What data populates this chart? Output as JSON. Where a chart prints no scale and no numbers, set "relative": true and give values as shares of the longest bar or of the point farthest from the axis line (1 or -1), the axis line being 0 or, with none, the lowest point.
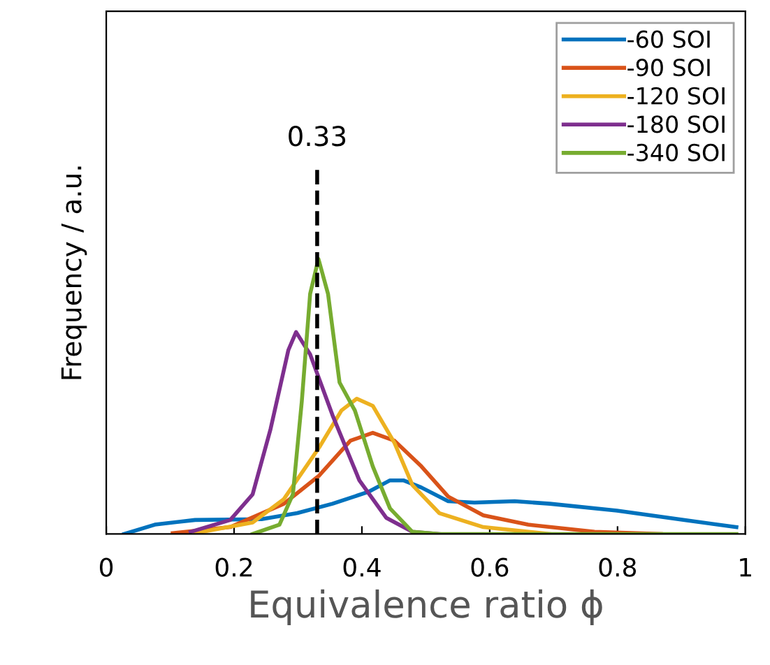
{
  "chart_data": {
    "type": "line",
    "xlabel": "Equivalence ratio ϕ",
    "ylabel": "Frequency / a.u.",
    "relative": true,
    "xlim": [
      0,
      1
    ],
    "xticks": [
      0,
      0.2,
      0.4,
      0.6,
      0.8,
      1
    ],
    "grid": false,
    "legend": "top right",
    "marker": "none",
    "line_style": "solid",
    "ref_lines": [
      {
        "axis": "x",
        "value": 0.33,
        "label": "0.33",
        "color": "#000000",
        "line_style": "dashed"
      }
    ],
    "series": [
      {
        "name": "-60 SOI",
        "color": "#0072bd",
        "x": [
          0.028,
          0.076,
          0.139,
          0.243,
          0.299,
          0.354,
          0.41,
          0.444,
          0.465,
          0.493,
          0.535,
          0.576,
          0.639,
          0.694,
          0.799,
          0.903,
          0.986
        ],
        "values": [
          0,
          0.034,
          0.051,
          0.054,
          0.076,
          0.11,
          0.153,
          0.195,
          0.195,
          0.169,
          0.119,
          0.114,
          0.119,
          0.11,
          0.085,
          0.051,
          0.025
        ]
      },
      {
        "name": "-90 SOI",
        "color": "#d95319",
        "x": [
          0.104,
          0.194,
          0.278,
          0.333,
          0.382,
          0.417,
          0.451,
          0.493,
          0.535,
          0.59,
          0.66,
          0.764,
          0.868
        ],
        "values": [
          0.003,
          0.025,
          0.11,
          0.212,
          0.339,
          0.368,
          0.339,
          0.246,
          0.136,
          0.068,
          0.034,
          0.008,
          0
        ]
      },
      {
        "name": "-120 SOI",
        "color": "#edb120",
        "x": [
          0.139,
          0.229,
          0.278,
          0.333,
          0.368,
          0.392,
          0.417,
          0.451,
          0.479,
          0.521,
          0.59,
          0.694
        ],
        "values": [
          0.003,
          0.042,
          0.127,
          0.314,
          0.449,
          0.492,
          0.466,
          0.331,
          0.178,
          0.076,
          0.025,
          0
        ]
      },
      {
        "name": "-180 SOI",
        "color": "#7e2f8e",
        "x": [
          0.132,
          0.194,
          0.229,
          0.257,
          0.285,
          0.297,
          0.319,
          0.354,
          0.396,
          0.438,
          0.479,
          0.521
        ],
        "values": [
          0.008,
          0.051,
          0.144,
          0.381,
          0.669,
          0.734,
          0.653,
          0.432,
          0.195,
          0.059,
          0.008,
          0
        ]
      },
      {
        "name": "-340 SOI",
        "color": "#77ac30",
        "x": [
          0.229,
          0.271,
          0.292,
          0.306,
          0.319,
          0.332,
          0.347,
          0.365,
          0.389,
          0.417,
          0.444,
          0.479,
          0.521,
          0.986
        ],
        "values": [
          0,
          0.034,
          0.144,
          0.483,
          0.873,
          1,
          0.873,
          0.551,
          0.449,
          0.246,
          0.093,
          0.008,
          0,
          0
        ]
      }
    ]
  }
}
